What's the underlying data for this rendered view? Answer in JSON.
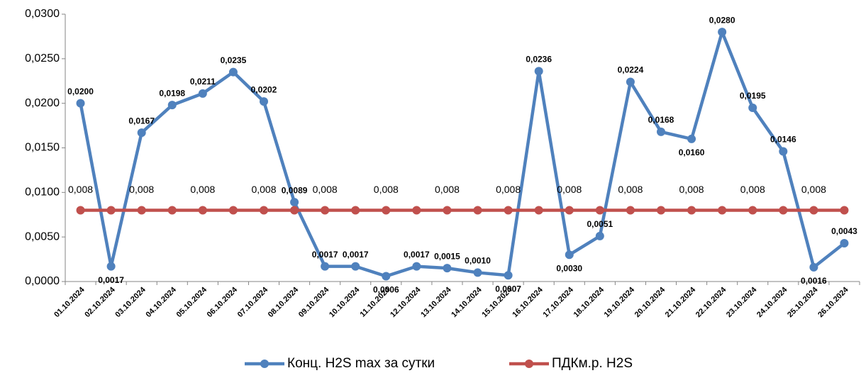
{
  "chart_data": {
    "type": "line",
    "categories": [
      "01.10.2024",
      "02.10.2024",
      "03.10.2024",
      "04.10.2024",
      "05.10.2024",
      "06.10.2024",
      "07.10.2024",
      "08.10.2024",
      "09.10.2024",
      "10.10.2024",
      "11.10.2024",
      "12.10.2024",
      "13.10.2024",
      "14.10.2024",
      "15.10.2024",
      "16.10.2024",
      "17.10.2024",
      "18.10.2024",
      "19.10.2024",
      "20.10.2024",
      "21.10.2024",
      "22.10.2024",
      "23.10.2024",
      "24.10.2024",
      "25.10.2024",
      "26.10.2024"
    ],
    "series": [
      {
        "name": "Конц. H2S max за сутки",
        "color": "#4f81bd",
        "values": [
          0.02,
          0.0017,
          0.0167,
          0.0198,
          0.0211,
          0.0235,
          0.0202,
          0.0089,
          0.0017,
          0.0017,
          0.0006,
          0.0017,
          0.0015,
          0.001,
          0.0007,
          0.0236,
          0.003,
          0.0051,
          0.0224,
          0.0168,
          0.016,
          0.028,
          0.0195,
          0.0146,
          0.0016,
          0.0043
        ],
        "value_labels": [
          "0,0200",
          "0,0017",
          "0,0167",
          "0,0198",
          "0,0211",
          "0,0235",
          "0,0202",
          "0,0089",
          "0,0017",
          "0,0017",
          "0,0006",
          "0,0017",
          "0,0015",
          "0,0010",
          "0,0007",
          "0,0236",
          "0,0030",
          "0,0051",
          "0,0224",
          "0,0168",
          "0,0160",
          "0,0280",
          "0,0195",
          "0,0146",
          "0,0016",
          "0,0043"
        ]
      },
      {
        "name": "ПДКм.р. H2S",
        "color": "#c0504d",
        "label_color": "#ff0000",
        "values": [
          0.008,
          0.008,
          0.008,
          0.008,
          0.008,
          0.008,
          0.008,
          0.008,
          0.008,
          0.008,
          0.008,
          0.008,
          0.008,
          0.008,
          0.008,
          0.008,
          0.008,
          0.008,
          0.008,
          0.008,
          0.008,
          0.008,
          0.008,
          0.008,
          0.008,
          0.008
        ],
        "value_labels": [
          "0,008",
          null,
          "0,008",
          null,
          "0,008",
          null,
          "0,008",
          null,
          "0,008",
          null,
          "0,008",
          null,
          "0,008",
          null,
          "0,008",
          null,
          "0,008",
          null,
          "0,008",
          null,
          "0,008",
          null,
          "0,008",
          null,
          "0,008",
          null
        ]
      }
    ],
    "ylim": [
      0,
      0.03
    ],
    "yticks": [
      {
        "value": 0,
        "label": "0,0000"
      },
      {
        "value": 0.005,
        "label": "0,0050"
      },
      {
        "value": 0.01,
        "label": "0,0100"
      },
      {
        "value": 0.015,
        "label": "0,0150"
      },
      {
        "value": 0.02,
        "label": "0,0200"
      },
      {
        "value": 0.025,
        "label": "0,0250"
      },
      {
        "value": 0.03,
        "label": "0,0300"
      }
    ],
    "grid": false,
    "legend": "bottom"
  }
}
